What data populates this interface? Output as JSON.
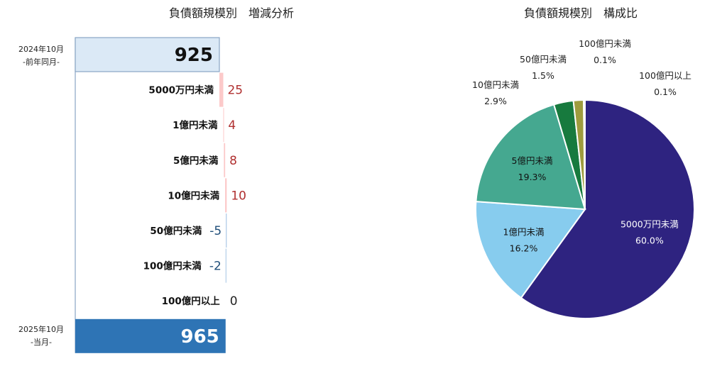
{
  "chart_data": [
    {
      "type": "bar",
      "subtype": "waterfall",
      "title": "負債額規模別　増減分析",
      "start": {
        "label_line1": "2024年10月",
        "label_line2": "-前年同月-",
        "value": 925
      },
      "end": {
        "label_line1": "2025年10月",
        "label_line2": "-当月-",
        "value": 965
      },
      "categories": [
        "5000万円未満",
        "1億円未満",
        "5億円未満",
        "10億円未満",
        "50億円未満",
        "100億円未満",
        "100億円以上"
      ],
      "values": [
        25,
        4,
        8,
        10,
        -5,
        -2,
        0
      ],
      "value_labels": [
        "25",
        "4",
        "8",
        "10",
        "-5",
        "-2",
        "0"
      ],
      "colors": {
        "start": "#dbe9f6",
        "end": "#2e74b5",
        "increase": "#fcc9c9",
        "decrease": "#a4c4e4",
        "increase_text": "#b03030",
        "decrease_text": "#1f4e79"
      }
    },
    {
      "type": "pie",
      "title": "負債額規模別　構成比",
      "slices": [
        {
          "name": "5000万円未満",
          "value": 60.0,
          "label": "60.0%",
          "color": "#2e2380"
        },
        {
          "name": "1億円未満",
          "value": 16.2,
          "label": "16.2%",
          "color": "#87ccee"
        },
        {
          "name": "5億円未満",
          "value": 19.3,
          "label": "19.3%",
          "color": "#45a890"
        },
        {
          "name": "10億円未満",
          "value": 2.9,
          "label": "2.9%",
          "color": "#177a3e"
        },
        {
          "name": "50億円未満",
          "value": 1.5,
          "label": "1.5%",
          "color": "#9e9c3e"
        },
        {
          "name": "100億円未満",
          "value": 0.1,
          "label": "0.1%",
          "color": "#c9c36a"
        },
        {
          "name": "100億円以上",
          "value": 0.1,
          "label": "0.1%",
          "color": "#d4d08a"
        }
      ]
    }
  ]
}
